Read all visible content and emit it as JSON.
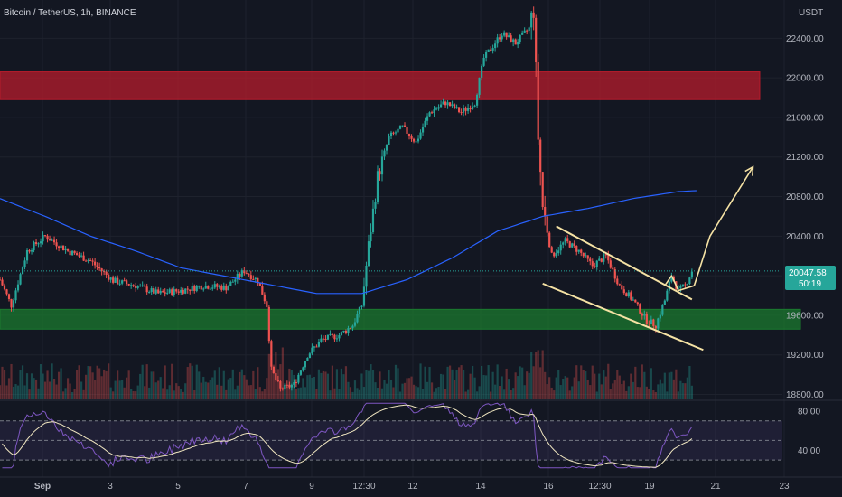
{
  "header": {
    "title": "Bitcoin / TetherUS, 1h, BINANCE",
    "currency": "USDT"
  },
  "colors": {
    "background": "#131722",
    "up": "#26a69a",
    "down": "#ef5350",
    "ma": "#2962ff",
    "rsi": "#7e57c2",
    "rsi_ma": "#f0e6c0",
    "drawing": "#f5e2a4",
    "resistance_zone": "#b71c2c",
    "support_zone": "#1b7a2f",
    "price_badge": "#26a69a"
  },
  "chart_data": {
    "type": "candlestick",
    "symbol": "BTCUSDT",
    "timeframe": "1h",
    "exchange": "BINANCE",
    "y_axis": {
      "unit": "USDT",
      "ticks": [
        18800,
        19200,
        19600,
        20000,
        20400,
        20800,
        21200,
        21600,
        22000,
        22400
      ],
      "tick_labels": [
        "18800.00",
        "19200.00",
        "19600.00",
        "20000.00",
        "20400.00",
        "20800.00",
        "21200.00",
        "21600.00",
        "22000.00",
        "22400.00"
      ],
      "range": [
        18750,
        22750
      ]
    },
    "x_axis": {
      "ticks": [
        "Sep",
        "3",
        "5",
        "7",
        "9",
        "12:30",
        "12",
        "14",
        "16",
        "12:30",
        "19",
        "21",
        "23"
      ]
    },
    "current_price": {
      "label": "20047.58",
      "countdown": "50:19",
      "value": 20047.58
    },
    "price_anchors": [
      {
        "t": 0,
        "p": 19960
      },
      {
        "t": 5,
        "p": 19700
      },
      {
        "t": 12,
        "p": 20250
      },
      {
        "t": 20,
        "p": 20400
      },
      {
        "t": 30,
        "p": 20250
      },
      {
        "t": 40,
        "p": 20150
      },
      {
        "t": 50,
        "p": 19950
      },
      {
        "t": 60,
        "p": 19900
      },
      {
        "t": 70,
        "p": 19820
      },
      {
        "t": 80,
        "p": 19850
      },
      {
        "t": 90,
        "p": 19900
      },
      {
        "t": 100,
        "p": 19880
      },
      {
        "t": 108,
        "p": 20050
      },
      {
        "t": 114,
        "p": 19950
      },
      {
        "t": 118,
        "p": 19700
      },
      {
        "t": 120,
        "p": 19050
      },
      {
        "t": 124,
        "p": 18850
      },
      {
        "t": 130,
        "p": 18900
      },
      {
        "t": 136,
        "p": 19200
      },
      {
        "t": 142,
        "p": 19350
      },
      {
        "t": 150,
        "p": 19400
      },
      {
        "t": 156,
        "p": 19500
      },
      {
        "t": 160,
        "p": 19700
      },
      {
        "t": 163,
        "p": 20300
      },
      {
        "t": 167,
        "p": 21000
      },
      {
        "t": 172,
        "p": 21400
      },
      {
        "t": 178,
        "p": 21500
      },
      {
        "t": 184,
        "p": 21350
      },
      {
        "t": 190,
        "p": 21650
      },
      {
        "t": 197,
        "p": 21750
      },
      {
        "t": 204,
        "p": 21650
      },
      {
        "t": 210,
        "p": 21750
      },
      {
        "t": 214,
        "p": 22200
      },
      {
        "t": 222,
        "p": 22450
      },
      {
        "t": 228,
        "p": 22350
      },
      {
        "t": 234,
        "p": 22500
      },
      {
        "t": 236,
        "p": 22700
      },
      {
        "t": 238,
        "p": 21400
      },
      {
        "t": 240,
        "p": 20700
      },
      {
        "t": 244,
        "p": 20200
      },
      {
        "t": 250,
        "p": 20350
      },
      {
        "t": 256,
        "p": 20250
      },
      {
        "t": 262,
        "p": 20100
      },
      {
        "t": 268,
        "p": 20200
      },
      {
        "t": 274,
        "p": 19900
      },
      {
        "t": 280,
        "p": 19750
      },
      {
        "t": 286,
        "p": 19550
      },
      {
        "t": 290,
        "p": 19500
      },
      {
        "t": 294,
        "p": 19750
      },
      {
        "t": 297,
        "p": 20000
      },
      {
        "t": 300,
        "p": 19850
      },
      {
        "t": 303,
        "p": 19900
      },
      {
        "t": 306,
        "p": 20047
      }
    ],
    "moving_average": {
      "values": [
        {
          "t": 0,
          "p": 20780
        },
        {
          "t": 20,
          "p": 20600
        },
        {
          "t": 40,
          "p": 20400
        },
        {
          "t": 60,
          "p": 20250
        },
        {
          "t": 80,
          "p": 20080
        },
        {
          "t": 110,
          "p": 19950
        },
        {
          "t": 140,
          "p": 19820
        },
        {
          "t": 160,
          "p": 19820
        },
        {
          "t": 180,
          "p": 19960
        },
        {
          "t": 200,
          "p": 20180
        },
        {
          "t": 220,
          "p": 20450
        },
        {
          "t": 240,
          "p": 20600
        },
        {
          "t": 260,
          "p": 20680
        },
        {
          "t": 280,
          "p": 20780
        },
        {
          "t": 300,
          "p": 20850
        },
        {
          "t": 308,
          "p": 20860
        }
      ]
    },
    "zones": [
      {
        "name": "resistance",
        "from_t": 0,
        "to_t": 336,
        "low": 21780,
        "high": 22060
      },
      {
        "name": "support",
        "from_t": 0,
        "to_t": 354,
        "low": 19460,
        "high": 19660
      }
    ],
    "rsi": {
      "ticks": [
        40,
        80
      ],
      "tick_labels": [
        "40.00",
        "80.00"
      ],
      "levels": [
        30,
        50,
        70
      ],
      "range": [
        20,
        90
      ]
    },
    "annotations": [
      {
        "type": "channel",
        "upper": [
          {
            "t": 246,
            "p": 20500
          },
          {
            "t": 306,
            "p": 19760
          }
        ],
        "lower": [
          {
            "t": 240,
            "p": 19920
          },
          {
            "t": 311,
            "p": 19250
          }
        ]
      },
      {
        "type": "projection-arrow",
        "points": [
          {
            "t": 294,
            "p": 19900
          },
          {
            "t": 297,
            "p": 20000
          },
          {
            "t": 300,
            "p": 19850
          },
          {
            "t": 307,
            "p": 19900
          },
          {
            "t": 314,
            "p": 20400
          },
          {
            "t": 333,
            "p": 21100
          }
        ]
      }
    ]
  }
}
